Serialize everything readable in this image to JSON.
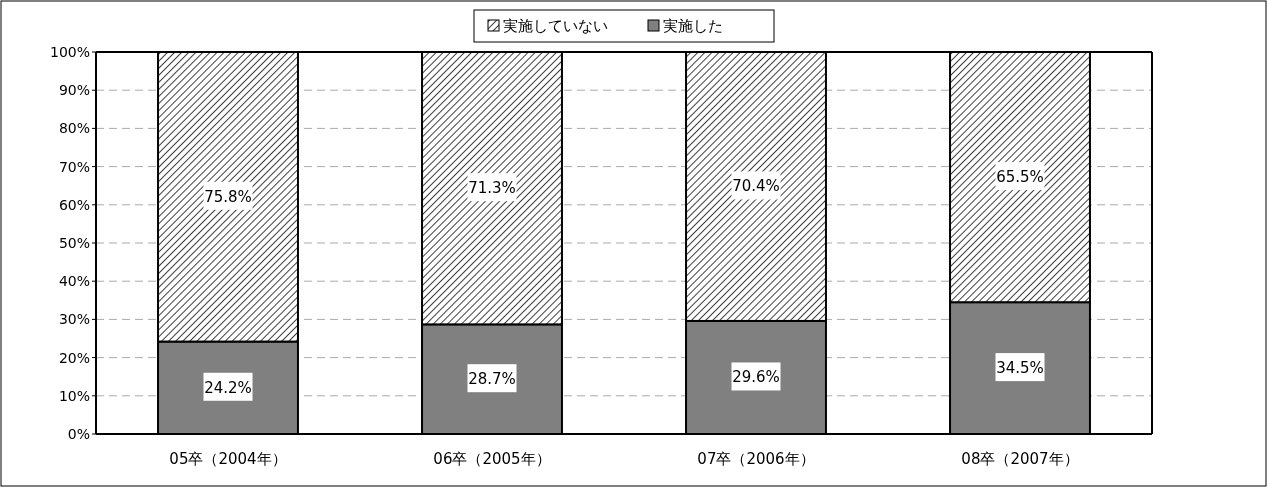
{
  "chart_data": {
    "type": "bar",
    "stacked": true,
    "categories": [
      "05卒（2004年）",
      "06卒（2005年）",
      "07卒（2006年）",
      "08卒（2007年）"
    ],
    "series": [
      {
        "name": "実施した",
        "color": "#808080",
        "values": [
          24.2,
          28.7,
          29.6,
          34.5
        ],
        "value_labels": [
          "24.2%",
          "28.7%",
          "29.6%",
          "34.5%"
        ]
      },
      {
        "name": "実施していない",
        "color": "#000000",
        "values": [
          75.8,
          71.3,
          70.4,
          65.5
        ],
        "value_labels": [
          "75.8%",
          "71.3%",
          "70.4%",
          "65.5%"
        ]
      }
    ],
    "ylim": [
      0,
      100
    ],
    "yticks": [
      {
        "value": 0,
        "label": "0%"
      },
      {
        "value": 10,
        "label": "10%"
      },
      {
        "value": 20,
        "label": "20%"
      },
      {
        "value": 30,
        "label": "30%"
      },
      {
        "value": 40,
        "label": "40%"
      },
      {
        "value": 50,
        "label": "50%"
      },
      {
        "value": 60,
        "label": "60%"
      },
      {
        "value": 70,
        "label": "70%"
      },
      {
        "value": 80,
        "label": "80%"
      },
      {
        "value": 90,
        "label": "90%"
      },
      {
        "value": 100,
        "label": "100%"
      }
    ],
    "grid": "y",
    "legend": "top"
  }
}
